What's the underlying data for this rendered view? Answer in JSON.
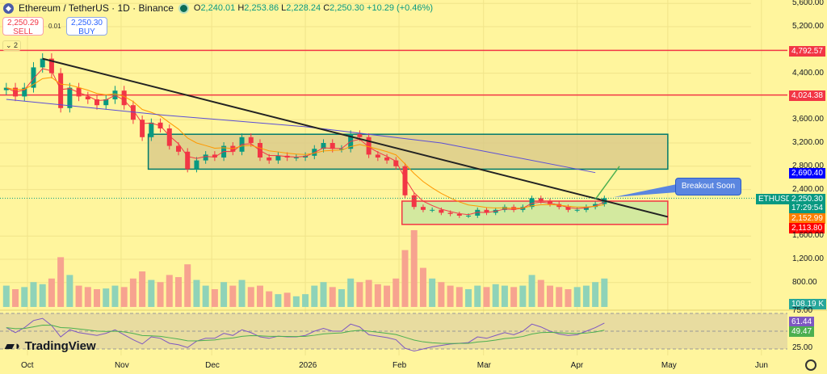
{
  "header": {
    "title": "Ethereum / TetherUS · 1D · Binance",
    "open": "2,240.01",
    "high": "2,253.86",
    "low": "2,228.24",
    "close": "2,250.30",
    "change": "+10.29 (+0.46%)",
    "o": "O",
    "h": "H",
    "l": "L",
    "c": "C"
  },
  "trade": {
    "sell_price": "2,250.29",
    "sell_label": "SELL",
    "spread": "0.01",
    "buy_price": "2,250.30",
    "buy_label": "BUY"
  },
  "indicators_toggle": "2",
  "brand": "TradingView",
  "annotation": "Breakout Soon",
  "symbol_tag": "ETHUSDT",
  "colors": {
    "background": "#fff59d",
    "up": "#089981",
    "down": "#f23645",
    "resistance": "#f23645",
    "ema_fast": "#f23645",
    "ema_slow": "#ff9800",
    "ma_long": "#5b4ed6",
    "rsi": "#7e57c2"
  },
  "price_axis": {
    "ticks": [
      "5,600.00",
      "5,200.00",
      "4,400.00",
      "3,600.00",
      "3,200.00",
      "2,800.00",
      "2,400.00",
      "1,600.00",
      "1,200.00",
      "800.00"
    ],
    "tick_values": [
      5600,
      5200,
      4400,
      3600,
      3200,
      2800,
      2400,
      1600,
      1200,
      800
    ]
  },
  "rsi_axis": {
    "ticks": [
      "75.00",
      "25.00"
    ]
  },
  "time_axis": {
    "labels": [
      "Oct",
      "Nov",
      "Dec",
      "2026",
      "Feb",
      "Mar",
      "Apr",
      "May",
      "Jun"
    ],
    "dates": [
      "2025-10-01",
      "2025-11-01",
      "2025-12-01",
      "2026-01-01",
      "2026-02-01",
      "2026-03-01",
      "2026-04-01",
      "2026-05-01",
      "2026-06-01"
    ]
  },
  "tags": {
    "resistance_1": "4,792.57",
    "resistance_2": "4,024.38",
    "ma_long": "2,690.40",
    "last_price": "2,250.30",
    "countdown": "17:29:54",
    "ema_slow": "2,152.99",
    "ema_fast": "2,113.80",
    "volume": "108.19 K",
    "rsi": "61.44",
    "rsi_ma": "49.47"
  },
  "chart_data": {
    "type": "candlestick",
    "start_date": "2025-09-24",
    "interval_days": 3,
    "closes": [
      4150,
      4000,
      4150,
      4500,
      4650,
      4400,
      3800,
      4150,
      4000,
      3950,
      3850,
      3950,
      4100,
      3850,
      3600,
      3300,
      3550,
      3450,
      3150,
      3050,
      2750,
      2900,
      3000,
      2950,
      3150,
      3050,
      3300,
      3200,
      2950,
      2900,
      2980,
      2950,
      2950,
      2980,
      3100,
      3200,
      3100,
      3100,
      3350,
      3300,
      3000,
      2950,
      2900,
      2800,
      2300,
      2100,
      2050,
      2050,
      2000,
      1980,
      1950,
      1950,
      2050,
      2000,
      2050,
      2100,
      2050,
      2100,
      2250,
      2200,
      2150,
      2100,
      2050,
      2050,
      2100,
      2150,
      2250
    ],
    "volumes": [
      30,
      25,
      28,
      35,
      32,
      40,
      70,
      45,
      30,
      28,
      25,
      26,
      30,
      28,
      40,
      50,
      38,
      35,
      45,
      42,
      60,
      38,
      30,
      25,
      35,
      30,
      38,
      28,
      30,
      22,
      18,
      20,
      15,
      18,
      30,
      35,
      28,
      25,
      40,
      35,
      38,
      32,
      30,
      40,
      80,
      108,
      55,
      40,
      35,
      30,
      28,
      25,
      30,
      28,
      32,
      30,
      28,
      30,
      45,
      38,
      30,
      28,
      25,
      28,
      30,
      35,
      40
    ],
    "rsi": [
      55,
      48,
      55,
      65,
      68,
      58,
      42,
      52,
      48,
      46,
      44,
      47,
      52,
      45,
      38,
      32,
      42,
      40,
      33,
      31,
      27,
      36,
      40,
      40,
      47,
      44,
      52,
      48,
      42,
      40,
      43,
      42,
      42,
      44,
      50,
      54,
      50,
      50,
      60,
      56,
      45,
      43,
      41,
      38,
      26,
      22,
      25,
      28,
      30,
      32,
      33,
      34,
      42,
      40,
      44,
      48,
      45,
      50,
      60,
      56,
      50,
      46,
      44,
      45,
      50,
      55,
      61.44
    ],
    "ma_long": {
      "dates": [
        "2025-09-24",
        "2025-11-15",
        "2026-01-01",
        "2026-02-15",
        "2026-04-07"
      ],
      "values": [
        3950,
        3680,
        3480,
        3200,
        2690.4
      ]
    },
    "horizontal_levels": [
      4792.57,
      4024.38
    ],
    "zones": [
      {
        "from": "2025-11-10",
        "to": "2026-05-01",
        "low": 2750,
        "high": 3350
      },
      {
        "from": "2026-02-02",
        "to": "2026-05-01",
        "low": 1800,
        "high": 2200
      }
    ],
    "trendline": {
      "from_date": "2025-10-06",
      "from_price": 4650,
      "to_date": "2026-05-01",
      "to_price": 1930
    },
    "projection": {
      "from_date": "2026-04-07",
      "from_price": 2230,
      "to_date": "2026-04-15",
      "to_price": 2800
    }
  }
}
